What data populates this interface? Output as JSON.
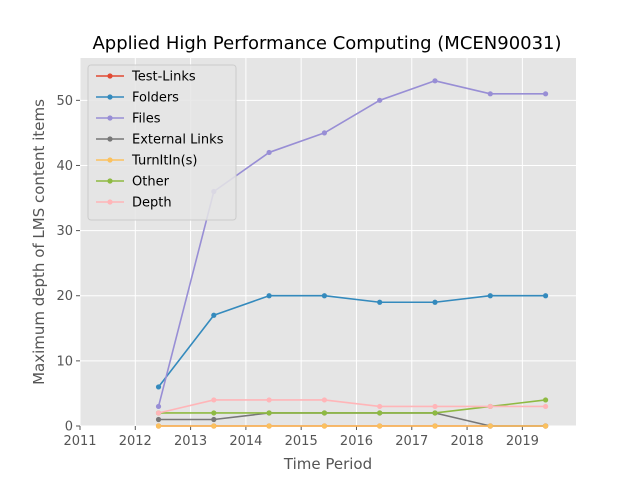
{
  "chart_data": {
    "type": "line",
    "title": "Applied High Performance Computing (MCEN90031)",
    "xlabel": "Time Period",
    "ylabel": "Maximum depth of LMS content items",
    "xlim": [
      2011.0,
      2019.97
    ],
    "ylim": [
      0,
      56.5
    ],
    "xticks": [
      2011,
      2012,
      2013,
      2014,
      2015,
      2016,
      2017,
      2018,
      2019
    ],
    "yticks": [
      0,
      10,
      20,
      30,
      40,
      50
    ],
    "grid": true,
    "legend_position": "upper-left",
    "x": [
      2012.42,
      2013.42,
      2014.42,
      2015.42,
      2016.42,
      2017.42,
      2018.42,
      2019.42
    ],
    "series": [
      {
        "name": "Test-Links",
        "color": "#e24a33",
        "values": [
          0,
          0,
          0,
          0,
          0,
          0,
          0,
          0
        ]
      },
      {
        "name": "Folders",
        "color": "#348abd",
        "values": [
          6,
          17,
          20,
          20,
          19,
          19,
          20,
          20
        ]
      },
      {
        "name": "Files",
        "color": "#988ed5",
        "values": [
          3,
          36,
          42,
          45,
          50,
          53,
          51,
          51
        ]
      },
      {
        "name": "External Links",
        "color": "#777777",
        "values": [
          1,
          1,
          2,
          2,
          2,
          2,
          0,
          0
        ]
      },
      {
        "name": "TurnItIn(s)",
        "color": "#fbc15e",
        "values": [
          0,
          0,
          0,
          0,
          0,
          0,
          0,
          0
        ]
      },
      {
        "name": "Other",
        "color": "#8eba42",
        "values": [
          2,
          2,
          2,
          2,
          2,
          2,
          3,
          4
        ]
      },
      {
        "name": "Depth",
        "color": "#ffb5b8",
        "values": [
          2,
          4,
          4,
          4,
          3,
          3,
          3,
          3
        ]
      }
    ]
  }
}
